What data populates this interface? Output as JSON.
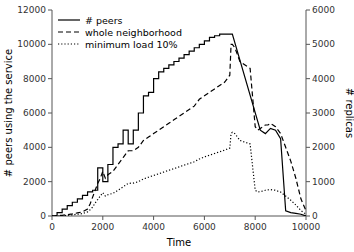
{
  "chart_data": {
    "type": "line",
    "title": "",
    "xlabel": "Time",
    "ylabel": "# peers using the service",
    "y2label": "# replicas",
    "xlim": [
      0,
      10000
    ],
    "xticks": [
      0,
      2000,
      4000,
      6000,
      8000,
      10000
    ],
    "ylim": [
      0,
      12000
    ],
    "yticks": [
      0,
      2000,
      4000,
      6000,
      8000,
      10000,
      12000
    ],
    "y2lim": [
      0,
      6000
    ],
    "y2ticks": [
      0,
      1000,
      2000,
      3000,
      4000,
      5000,
      6000
    ],
    "grid": false,
    "legend": "upper left",
    "series": [
      {
        "name": "# peers",
        "color": "#000000",
        "line_style": "solid",
        "x": [
          0,
          200,
          200,
          400,
          400,
          600,
          600,
          800,
          800,
          1000,
          1000,
          1200,
          1200,
          1400,
          1400,
          1600,
          1600,
          1800,
          1800,
          2000,
          2000,
          2200,
          2200,
          2400,
          2400,
          2600,
          2600,
          2800,
          2800,
          3000,
          3000,
          3200,
          3200,
          3400,
          3400,
          3600,
          3600,
          3800,
          3800,
          4000,
          4000,
          4200,
          4200,
          4400,
          4400,
          4600,
          4600,
          4800,
          4800,
          5000,
          5000,
          5200,
          5200,
          5400,
          5400,
          5600,
          5600,
          5800,
          5800,
          6000,
          6000,
          6200,
          6200,
          6400,
          6400,
          6600,
          6600,
          6800,
          6800,
          7000,
          7000,
          7100,
          8200,
          8200,
          8400,
          8400,
          8600,
          8600,
          8800,
          8800,
          9000,
          9000,
          9200,
          9200,
          9400,
          9400,
          9600,
          9600,
          9800,
          9800,
          10000
        ],
        "values": [
          0,
          0,
          200,
          200,
          400,
          400,
          600,
          600,
          800,
          800,
          1000,
          1000,
          1200,
          1200,
          1400,
          1400,
          1500,
          1500,
          2800,
          2800,
          2000,
          2000,
          3000,
          3000,
          4000,
          4000,
          4200,
          4200,
          5000,
          5000,
          4200,
          4200,
          5000,
          5000,
          6000,
          6000,
          7000,
          7000,
          7200,
          7200,
          8000,
          8000,
          8400,
          8400,
          8600,
          8600,
          8800,
          8800,
          9000,
          9000,
          9200,
          9200,
          9400,
          9400,
          9600,
          9600,
          9800,
          9800,
          10000,
          10000,
          10200,
          10200,
          10400,
          10400,
          10500,
          10500,
          10600,
          10600,
          10600,
          10600,
          10600,
          10600,
          5000,
          5000,
          4800,
          4800,
          5100,
          5100,
          5000,
          5000,
          4500,
          4500,
          300,
          300,
          200,
          200,
          150,
          150,
          100,
          100,
          0
        ]
      },
      {
        "name": "whole neighborhood",
        "color": "#000000",
        "line_style": "dashed",
        "axis": "y2",
        "x": [
          0,
          200,
          400,
          600,
          800,
          1000,
          1200,
          1400,
          1500,
          1600,
          1700,
          1800,
          1900,
          2000,
          2100,
          2200,
          2400,
          2600,
          2800,
          3000,
          3200,
          3400,
          3600,
          3800,
          4000,
          4200,
          4400,
          4600,
          4800,
          5000,
          5200,
          5400,
          5600,
          5800,
          6000,
          6200,
          6400,
          6600,
          6800,
          7000,
          7050,
          7100,
          7200,
          7300,
          7400,
          7600,
          7800,
          8000,
          8100,
          8200,
          8300,
          8400,
          8500,
          8600,
          8700,
          8800,
          8900,
          9000,
          9200,
          9400,
          9600,
          9800,
          10000
        ],
        "values": [
          0,
          10,
          20,
          40,
          60,
          90,
          120,
          200,
          350,
          550,
          750,
          950,
          1100,
          1300,
          1100,
          1200,
          1300,
          1500,
          1700,
          1900,
          1900,
          2000,
          2200,
          2300,
          2400,
          2500,
          2600,
          2700,
          2800,
          2900,
          3000,
          3100,
          3200,
          3400,
          3500,
          3600,
          3700,
          3800,
          3900,
          4100,
          5000,
          5000,
          4900,
          4700,
          4500,
          4400,
          4300,
          2600,
          2500,
          2550,
          2600,
          2650,
          2650,
          2700,
          2650,
          2600,
          2500,
          2400,
          2000,
          1600,
          1100,
          500,
          150
        ]
      },
      {
        "name": "minimum load 10%",
        "color": "#000000",
        "line_style": "dotted",
        "axis": "y2",
        "x": [
          0,
          200,
          400,
          600,
          800,
          1000,
          1200,
          1400,
          1500,
          1600,
          1700,
          1800,
          1900,
          2000,
          2100,
          2200,
          2400,
          2600,
          2800,
          3000,
          3200,
          3400,
          3600,
          3800,
          4000,
          4200,
          4400,
          4600,
          4800,
          5000,
          5200,
          5400,
          5600,
          5800,
          6000,
          6200,
          6400,
          6600,
          6800,
          7000,
          7050,
          7100,
          7200,
          7300,
          7400,
          7600,
          7800,
          8000,
          8100,
          8200,
          8300,
          8400,
          8500,
          8600,
          8700,
          8800,
          8900,
          9000,
          9200,
          9400,
          9600,
          9800,
          10000
        ],
        "values": [
          0,
          5,
          10,
          20,
          35,
          50,
          70,
          120,
          180,
          260,
          380,
          480,
          580,
          680,
          580,
          620,
          660,
          750,
          850,
          950,
          960,
          1000,
          1080,
          1130,
          1180,
          1230,
          1280,
          1330,
          1380,
          1430,
          1480,
          1530,
          1580,
          1660,
          1720,
          1770,
          1820,
          1870,
          1920,
          1980,
          2400,
          2440,
          2400,
          2300,
          2200,
          2150,
          2100,
          750,
          700,
          710,
          730,
          750,
          760,
          770,
          760,
          750,
          720,
          700,
          580,
          460,
          320,
          160,
          50
        ]
      }
    ]
  }
}
